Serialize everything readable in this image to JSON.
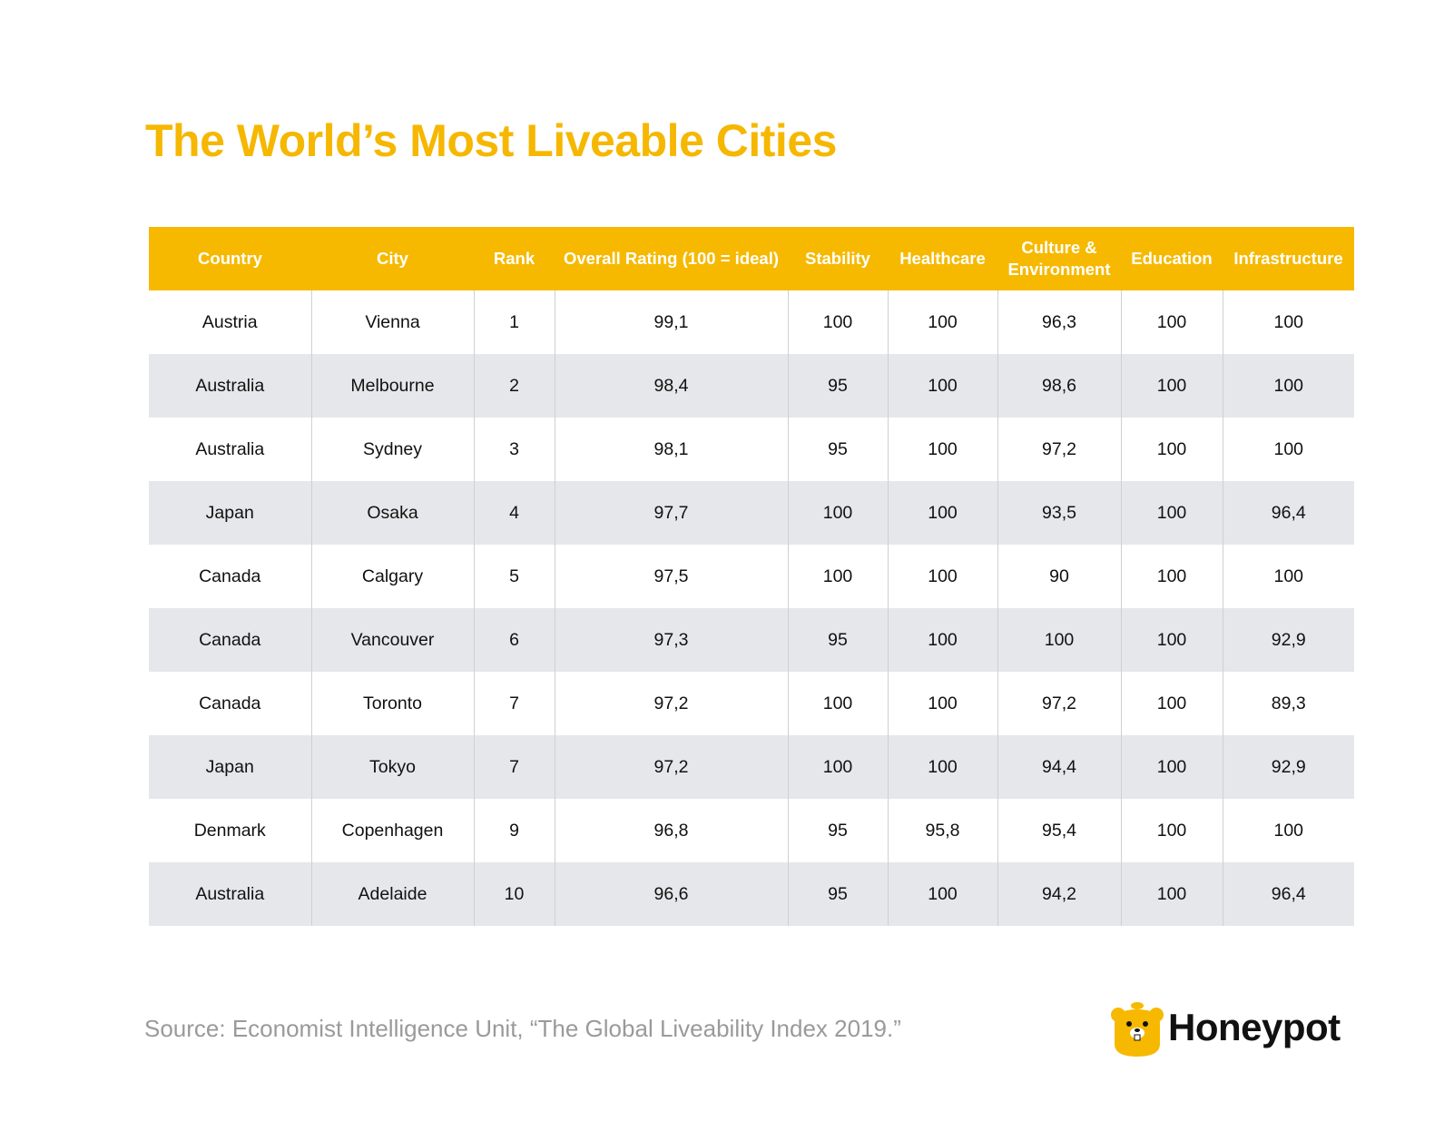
{
  "header": {
    "title": "The World’s Most Liveable Cities"
  },
  "table": {
    "columns": [
      "Country",
      "City",
      "Rank",
      "Overall Rating (100 = ideal)",
      "Stability",
      "Healthcare",
      "Culture & Environment",
      "Education",
      "Infrastructure"
    ],
    "rows": [
      [
        "Austria",
        "Vienna",
        "1",
        "99,1",
        "100",
        "100",
        "96,3",
        "100",
        "100"
      ],
      [
        "Australia",
        "Melbourne",
        "2",
        "98,4",
        "95",
        "100",
        "98,6",
        "100",
        "100"
      ],
      [
        "Australia",
        "Sydney",
        "3",
        "98,1",
        "95",
        "100",
        "97,2",
        "100",
        "100"
      ],
      [
        "Japan",
        "Osaka",
        "4",
        "97,7",
        "100",
        "100",
        "93,5",
        "100",
        "96,4"
      ],
      [
        "Canada",
        "Calgary",
        "5",
        "97,5",
        "100",
        "100",
        "90",
        "100",
        "100"
      ],
      [
        "Canada",
        "Vancouver",
        "6",
        "97,3",
        "95",
        "100",
        "100",
        "100",
        "92,9"
      ],
      [
        "Canada",
        "Toronto",
        "7",
        "97,2",
        "100",
        "100",
        "97,2",
        "100",
        "89,3"
      ],
      [
        "Japan",
        "Tokyo",
        "7",
        "97,2",
        "100",
        "100",
        "94,4",
        "100",
        "92,9"
      ],
      [
        "Denmark",
        "Copenhagen",
        "9",
        "96,8",
        "95",
        "95,8",
        "95,4",
        "100",
        "100"
      ],
      [
        "Australia",
        "Adelaide",
        "10",
        "96,6",
        "95",
        "100",
        "94,2",
        "100",
        "96,4"
      ]
    ]
  },
  "footer": {
    "source": "Source: Economist Intelligence Unit, “The Global Liveability Index 2019.”",
    "logo": "Honeypot"
  }
}
